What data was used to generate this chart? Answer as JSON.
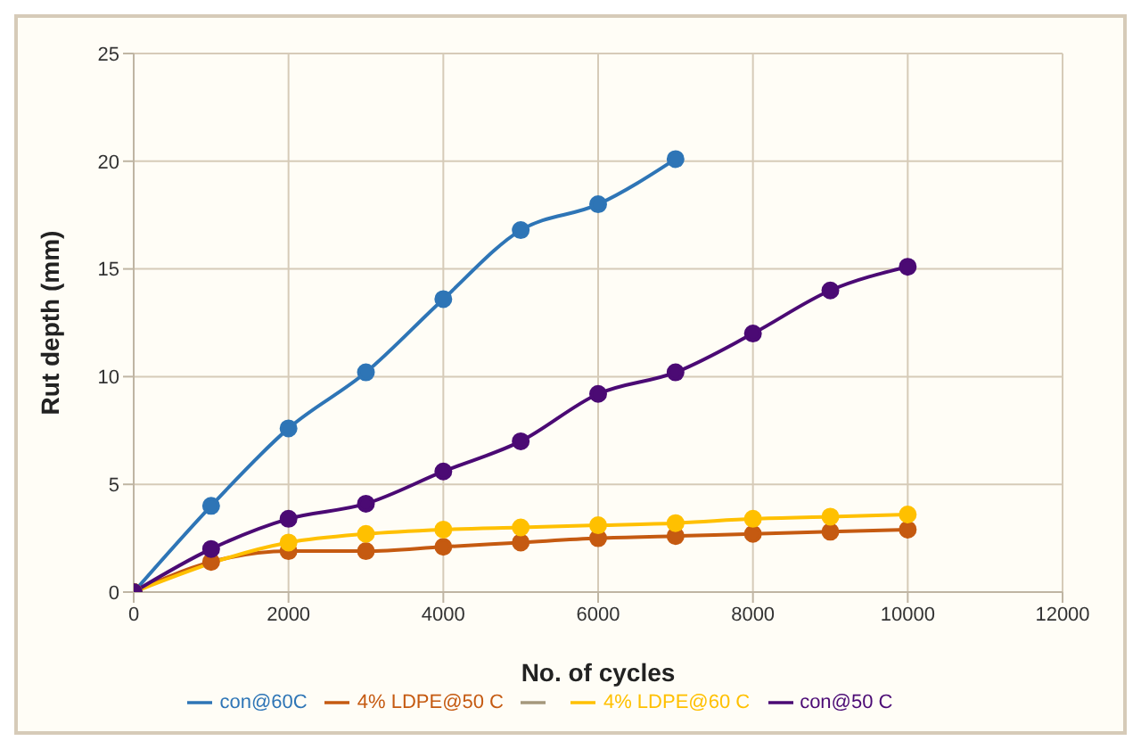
{
  "chart_data": {
    "type": "line",
    "xlabel": "No. of cycles",
    "ylabel": "Rut depth (mm)",
    "x": [
      0,
      1000,
      2000,
      3000,
      4000,
      5000,
      6000,
      7000,
      8000,
      9000,
      10000
    ],
    "series": [
      {
        "name": "con@60C",
        "color": "#2e75b6",
        "values": [
          0,
          4,
          7.6,
          10.2,
          13.6,
          16.8,
          18,
          20.1,
          null,
          null,
          null
        ]
      },
      {
        "name": "4% LDPE@50 C",
        "color": "#c55a11",
        "values": [
          0,
          1.4,
          1.9,
          1.9,
          2.1,
          2.3,
          2.5,
          2.6,
          2.7,
          2.8,
          2.9
        ]
      },
      {
        "color": "#a5987c",
        "values": [
          null,
          null,
          null,
          null,
          null,
          null,
          null,
          null,
          null,
          null,
          null
        ]
      },
      {
        "name": "4% LDPE@60 C",
        "color": "#ffc000",
        "values": [
          0,
          null,
          2.3,
          2.7,
          2.9,
          3,
          3.1,
          3.2,
          3.4,
          3.5,
          3.6
        ]
      },
      {
        "name": "con@50 C",
        "color": "#4b0a74",
        "values": [
          0,
          2,
          3.4,
          4.1,
          5.6,
          7,
          9.2,
          10.2,
          12,
          14,
          15.1
        ]
      }
    ],
    "xlim": [
      0,
      12000
    ],
    "xticks": [
      0,
      2000,
      4000,
      6000,
      8000,
      10000,
      12000
    ],
    "ylim": [
      0,
      25
    ],
    "yticks": [
      0,
      5,
      10,
      15,
      20,
      25
    ],
    "grid": true,
    "legend": "bottom",
    "marker": "circle",
    "line_style": "solid"
  }
}
